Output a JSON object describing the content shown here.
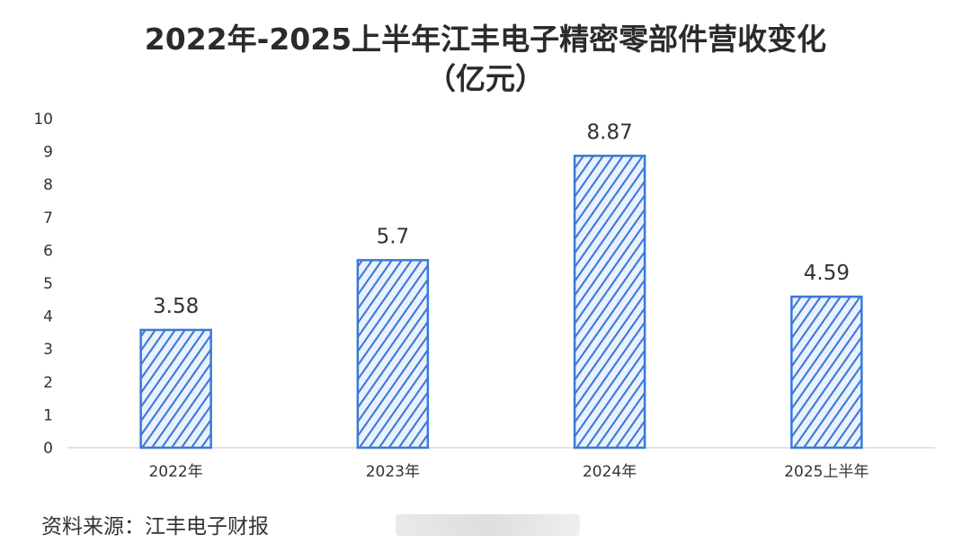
{
  "header": {
    "title_line1": "2022年-2025上半年江丰电子精密零部件营收变化",
    "title_line2": "（亿元）"
  },
  "chart_data": {
    "type": "bar",
    "title": "2022年-2025上半年江丰电子精密零部件营收变化（亿元）",
    "categories": [
      "2022年",
      "2023年",
      "2024年",
      "2025上半年"
    ],
    "values": [
      3.58,
      5.7,
      8.87,
      4.59
    ],
    "data_labels": [
      "3.58",
      "5.7",
      "8.87",
      "4.59"
    ],
    "ylim": [
      0,
      10
    ],
    "yticks": [
      0,
      1,
      2,
      3,
      4,
      5,
      6,
      7,
      8,
      9,
      10
    ],
    "xlabel": "",
    "ylabel": "",
    "grid": false,
    "legend": "none",
    "bar_color": "#3b78d8",
    "bar_pattern": "diagonal-hatch"
  },
  "footer": {
    "source": "资料来源：江丰电子财报"
  }
}
